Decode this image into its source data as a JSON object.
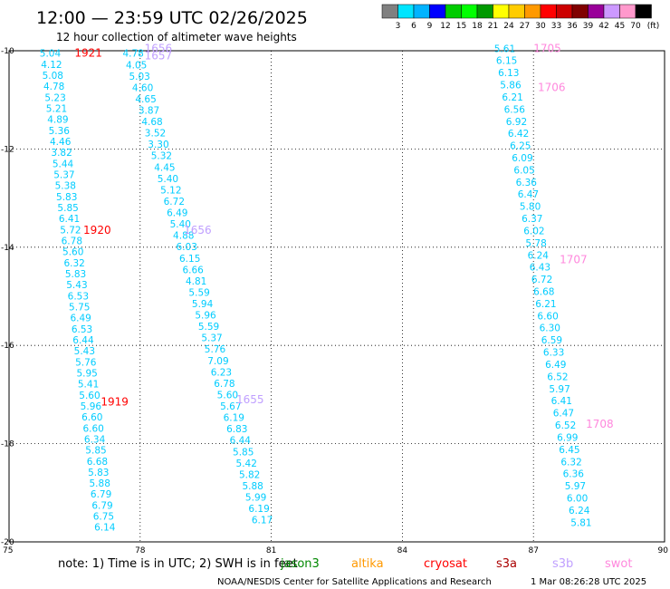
{
  "header": {
    "title": "12:00 — 23:59 UTC 02/26/2025",
    "subtitle": "12 hour collection of altimeter wave heights"
  },
  "colorbar": {
    "labels": [
      "3",
      "6",
      "9",
      "12",
      "15",
      "18",
      "21",
      "24",
      "27",
      "30",
      "33",
      "36",
      "39",
      "42",
      "45",
      "70"
    ],
    "unit": "(ft)",
    "colors": [
      "#808080",
      "#00e5ff",
      "#00b3ff",
      "#0000ff",
      "#00cc00",
      "#00ff00",
      "#009900",
      "#ffff00",
      "#ffcc00",
      "#ff9900",
      "#ff0000",
      "#cc0000",
      "#800000",
      "#990099",
      "#cc99ff",
      "#ff99cc",
      "#000000"
    ]
  },
  "footer": {
    "note": "note:  1) Time is in UTC;  2) SWH is in feet",
    "credit": "NOAA/NESDIS Center for Satellite Applications and Research",
    "timestamp": "1 Mar 08:26:28 UTC 2025",
    "legend": [
      {
        "name": "jason3",
        "color": "#008800"
      },
      {
        "name": "altika",
        "color": "#ff9900"
      },
      {
        "name": "cryosat",
        "color": "#ff0000"
      },
      {
        "name": "s3a",
        "color": "#aa0000"
      },
      {
        "name": "s3b",
        "color": "#c0a0ff"
      },
      {
        "name": "swot",
        "color": "#ff88dd"
      }
    ]
  },
  "chart_data": {
    "type": "scatter",
    "x_ticks": [
      "75",
      "78",
      "81",
      "84",
      "87",
      "90"
    ],
    "y_ticks": [
      "-10",
      "-12",
      "-14",
      "-16",
      "-18",
      "-20"
    ],
    "xlim": [
      75,
      90
    ],
    "ylim": [
      -20,
      -10
    ],
    "value_color": "#00ccff",
    "time_labels": [
      {
        "text": "1921",
        "lon": 76.5,
        "lat": -10.05,
        "color": "#ff0000"
      },
      {
        "text": "1920",
        "lon": 76.7,
        "lat": -13.65,
        "color": "#ff0000"
      },
      {
        "text": "1919",
        "lon": 77.1,
        "lat": -17.15,
        "color": "#ff0000"
      },
      {
        "text": "1656",
        "lon": 78.1,
        "lat": -9.95,
        "color": "#c0a0ff"
      },
      {
        "text": "1657",
        "lon": 78.1,
        "lat": -10.1,
        "color": "#c0a0ff"
      },
      {
        "text": "1656",
        "lon": 79.0,
        "lat": -13.65,
        "color": "#c0a0ff"
      },
      {
        "text": "1655",
        "lon": 80.2,
        "lat": -17.1,
        "color": "#c0a0ff"
      },
      {
        "text": "1705",
        "lon": 87.0,
        "lat": -9.95,
        "color": "#ff88dd"
      },
      {
        "text": "1706",
        "lon": 87.1,
        "lat": -10.75,
        "color": "#ff88dd"
      },
      {
        "text": "1707",
        "lon": 87.6,
        "lat": -14.25,
        "color": "#ff88dd"
      },
      {
        "text": "1708",
        "lon": 88.2,
        "lat": -17.6,
        "color": "#ff88dd"
      }
    ],
    "tracks": [
      {
        "lon_start": 75.7,
        "lat_start": -10.05,
        "lon_end": 76.95,
        "lat_end": -19.7,
        "values": [
          "5.04",
          "4.12",
          "5.08",
          "4.78",
          "5.23",
          "5.21",
          "4.89",
          "5.36",
          "4.46",
          "3.82",
          "5.44",
          "5.37",
          "5.38",
          "5.83",
          "5.85",
          "6.41",
          "5.72",
          "6.78",
          "5.60",
          "6.32",
          "5.83",
          "5.43",
          "6.53",
          "5.75",
          "6.49",
          "6.53",
          "6.44",
          "5.43",
          "5.76",
          "5.95",
          "5.41",
          "5.60",
          "5.96",
          "6.60",
          "6.60",
          "6.34",
          "5.85",
          "6.68",
          "5.83",
          "5.88",
          "6.79",
          "6.79",
          "6.75",
          "6.14"
        ]
      },
      {
        "lon_start": 77.6,
        "lat_start": -10.05,
        "lon_end": 80.55,
        "lat_end": -19.55,
        "values": [
          "4.78",
          "4.05",
          "5.03",
          "4.60",
          "4.65",
          "3.87",
          "4.68",
          "3.52",
          "3.30",
          "5.32",
          "4.45",
          "5.40",
          "5.12",
          "6.72",
          "6.49",
          "5.40",
          "4.88",
          "6.03",
          "6.15",
          "6.66",
          "4.81",
          "5.59",
          "5.94",
          "5.96",
          "5.59",
          "5.37",
          "5.76",
          "7.09",
          "6.23",
          "6.78",
          "5.60",
          "5.67",
          "6.19",
          "6.83",
          "6.44",
          "5.85",
          "5.42",
          "5.82",
          "5.88",
          "5.99",
          "6.19",
          "6.17"
        ]
      },
      {
        "lon_start": 86.1,
        "lat_start": -9.95,
        "lon_end": 87.85,
        "lat_end": -19.6,
        "values": [
          "5.61",
          "6.15",
          "6.13",
          "5.86",
          "6.21",
          "6.56",
          "6.92",
          "6.42",
          "6.25",
          "6.09",
          "6.05",
          "6.36",
          "6.47",
          "5.80",
          "6.37",
          "6.02",
          "5.78",
          "6.24",
          "6.43",
          "6.72",
          "6.68",
          "6.21",
          "6.60",
          "6.30",
          "6.59",
          "6.33",
          "6.49",
          "6.52",
          "5.97",
          "6.41",
          "6.47",
          "6.52",
          "6.99",
          "6.45",
          "6.32",
          "6.36",
          "5.97",
          "6.00",
          "6.24",
          "5.81"
        ]
      }
    ]
  }
}
